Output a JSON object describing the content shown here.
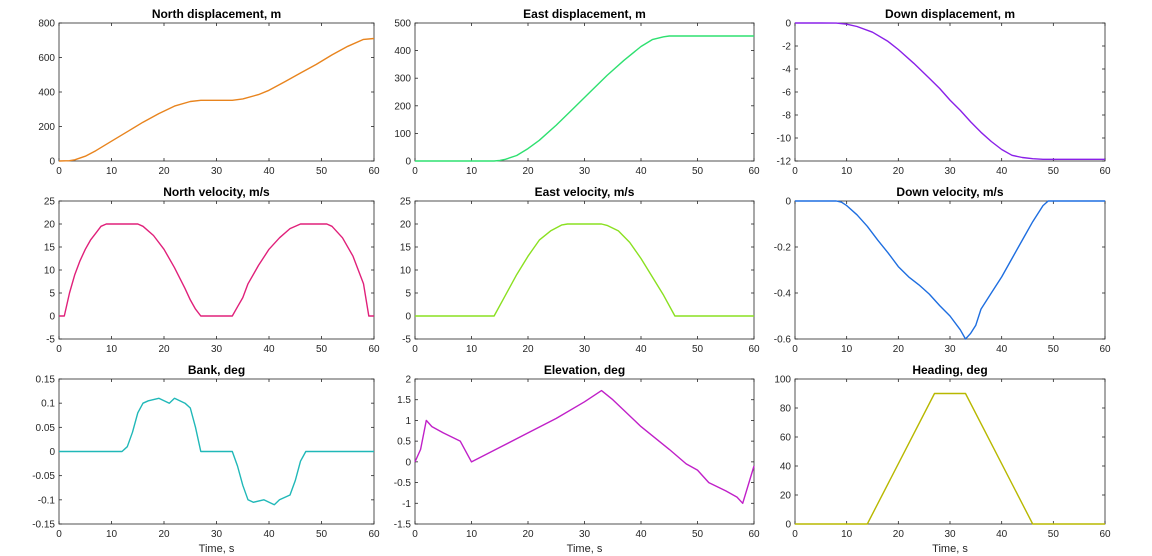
{
  "chart_data": [
    {
      "type": "line",
      "title": "North displacement, m",
      "xlabel": "",
      "ylabel": "",
      "xlim": [
        0,
        60
      ],
      "ylim": [
        0,
        800
      ],
      "xticks": [
        "0",
        "10",
        "20",
        "30",
        "40",
        "50",
        "60"
      ],
      "yticks": [
        "0",
        "200",
        "400",
        "600",
        "800"
      ],
      "series": [
        {
          "color": "#e8841e",
          "x": [
            0,
            2,
            3,
            5,
            7,
            10,
            13,
            16,
            19,
            22,
            25,
            27,
            30,
            33,
            35,
            38,
            40,
            43,
            46,
            49,
            52,
            55,
            58,
            60
          ],
          "y": [
            0,
            2,
            7,
            28,
            60,
            115,
            170,
            225,
            275,
            318,
            345,
            352,
            352,
            352,
            360,
            385,
            410,
            460,
            510,
            560,
            615,
            665,
            705,
            710
          ]
        }
      ]
    },
    {
      "type": "line",
      "title": "East displacement, m",
      "xlabel": "",
      "ylabel": "",
      "xlim": [
        0,
        60
      ],
      "ylim": [
        0,
        500
      ],
      "xticks": [
        "0",
        "10",
        "20",
        "30",
        "40",
        "50",
        "60"
      ],
      "yticks": [
        "0",
        "100",
        "200",
        "300",
        "400",
        "500"
      ],
      "series": [
        {
          "color": "#2ee070",
          "x": [
            0,
            10,
            14,
            15,
            16,
            18,
            20,
            22,
            25,
            28,
            31,
            34,
            37,
            40,
            42,
            44,
            45,
            46,
            50,
            55,
            60
          ],
          "y": [
            0,
            0,
            0,
            2,
            6,
            20,
            45,
            75,
            130,
            190,
            250,
            310,
            365,
            415,
            440,
            450,
            453,
            453,
            453,
            453,
            453
          ]
        }
      ]
    },
    {
      "type": "line",
      "title": "Down displacement, m",
      "xlabel": "",
      "ylabel": "",
      "xlim": [
        0,
        60
      ],
      "ylim": [
        -12,
        0
      ],
      "xticks": [
        "0",
        "10",
        "20",
        "30",
        "40",
        "50",
        "60"
      ],
      "yticks": [
        "0",
        "-2",
        "-4",
        "-6",
        "-8",
        "-10",
        "-12"
      ],
      "series": [
        {
          "color": "#8a20e8",
          "x": [
            0,
            5,
            8,
            10,
            12,
            15,
            18,
            20,
            23,
            26,
            28,
            30,
            32,
            34,
            36,
            38,
            40,
            42,
            44,
            46,
            48,
            50,
            55,
            60
          ],
          "y": [
            0,
            0,
            -0.01,
            -0.1,
            -0.3,
            -0.8,
            -1.6,
            -2.3,
            -3.5,
            -4.8,
            -5.7,
            -6.7,
            -7.6,
            -8.6,
            -9.5,
            -10.3,
            -11.0,
            -11.5,
            -11.7,
            -11.8,
            -11.85,
            -11.85,
            -11.85,
            -11.85
          ]
        }
      ]
    },
    {
      "type": "line",
      "title": "North velocity, m/s",
      "xlabel": "",
      "ylabel": "",
      "xlim": [
        0,
        60
      ],
      "ylim": [
        -5,
        25
      ],
      "xticks": [
        "0",
        "10",
        "20",
        "30",
        "40",
        "50",
        "60"
      ],
      "yticks": [
        "-5",
        "0",
        "5",
        "10",
        "15",
        "20",
        "25"
      ],
      "series": [
        {
          "color": "#e0207a",
          "x": [
            0,
            1,
            2,
            3,
            4,
            5,
            6,
            7,
            8,
            9,
            15,
            16,
            18,
            20,
            22,
            24,
            25,
            26,
            27,
            33,
            34,
            35,
            36,
            38,
            40,
            42,
            44,
            46,
            47,
            51,
            52,
            54,
            56,
            58,
            59,
            60
          ],
          "y": [
            0,
            0,
            5,
            9,
            12,
            14.5,
            16.5,
            18,
            19.5,
            20,
            20,
            19.5,
            17.5,
            14.5,
            10.5,
            6,
            3.5,
            1.5,
            0,
            0,
            2,
            4,
            7,
            11,
            14.5,
            17,
            19,
            20,
            20,
            20,
            19.5,
            17,
            13,
            7,
            0,
            0
          ]
        }
      ]
    },
    {
      "type": "line",
      "title": "East velocity, m/s",
      "xlabel": "",
      "ylabel": "",
      "xlim": [
        0,
        60
      ],
      "ylim": [
        -5,
        25
      ],
      "xticks": [
        "0",
        "10",
        "20",
        "30",
        "40",
        "50",
        "60"
      ],
      "yticks": [
        "-5",
        "0",
        "5",
        "10",
        "15",
        "20",
        "25"
      ],
      "series": [
        {
          "color": "#8ae020",
          "x": [
            0,
            14,
            16,
            18,
            20,
            22,
            24,
            26,
            27,
            33,
            34,
            36,
            38,
            40,
            42,
            44,
            46,
            50,
            55,
            60
          ],
          "y": [
            0,
            0,
            4.5,
            9,
            13,
            16.5,
            18.5,
            19.8,
            20,
            20,
            19.7,
            18.5,
            16,
            12.5,
            8.5,
            4.5,
            0,
            0,
            0,
            0
          ]
        }
      ]
    },
    {
      "type": "line",
      "title": "Down velocity, m/s",
      "xlabel": "",
      "ylabel": "",
      "xlim": [
        0,
        60
      ],
      "ylim": [
        -0.6,
        0
      ],
      "xticks": [
        "0",
        "10",
        "20",
        "30",
        "40",
        "50",
        "60"
      ],
      "yticks": [
        "0",
        "-0.2",
        "-0.4",
        "-0.6"
      ],
      "series": [
        {
          "color": "#1e6ee0",
          "x": [
            0,
            4,
            8,
            9,
            10,
            12,
            14,
            16,
            18,
            20,
            22,
            24,
            26,
            28,
            30,
            32,
            33,
            34,
            35,
            36,
            38,
            40,
            42,
            44,
            46,
            48,
            49,
            52,
            55,
            58,
            60
          ],
          "y": [
            0,
            0,
            0,
            -0.005,
            -0.02,
            -0.06,
            -0.11,
            -0.17,
            -0.225,
            -0.285,
            -0.33,
            -0.365,
            -0.405,
            -0.455,
            -0.5,
            -0.56,
            -0.6,
            -0.575,
            -0.54,
            -0.47,
            -0.4,
            -0.33,
            -0.25,
            -0.17,
            -0.09,
            -0.02,
            0,
            0,
            0,
            0,
            0
          ]
        }
      ]
    },
    {
      "type": "line",
      "title": "Bank, deg",
      "xlabel": "Time, s",
      "ylabel": "",
      "xlim": [
        0,
        60
      ],
      "ylim": [
        -0.15,
        0.15
      ],
      "xticks": [
        "0",
        "10",
        "20",
        "30",
        "40",
        "50",
        "60"
      ],
      "yticks": [
        "0.15",
        "0.1",
        "0.05",
        "0",
        "-0.05",
        "-0.1",
        "-0.15"
      ],
      "series": [
        {
          "color": "#20b8b8",
          "x": [
            0,
            12,
            13,
            14,
            15,
            16,
            17,
            19,
            21,
            22,
            24,
            25,
            26,
            27,
            33,
            34,
            35,
            36,
            37,
            39,
            41,
            42,
            44,
            45,
            46,
            47,
            48,
            52,
            56,
            60
          ],
          "y": [
            0,
            0,
            0.01,
            0.04,
            0.08,
            0.1,
            0.105,
            0.11,
            0.1,
            0.11,
            0.1,
            0.09,
            0.05,
            0,
            0,
            -0.03,
            -0.07,
            -0.1,
            -0.105,
            -0.1,
            -0.11,
            -0.1,
            -0.09,
            -0.06,
            -0.02,
            0,
            0,
            0,
            0,
            0
          ]
        }
      ]
    },
    {
      "type": "line",
      "title": "Elevation, deg",
      "xlabel": "Time, s",
      "ylabel": "",
      "xlim": [
        0,
        60
      ],
      "ylim": [
        -1.5,
        2
      ],
      "xticks": [
        "0",
        "10",
        "20",
        "30",
        "40",
        "50",
        "60"
      ],
      "yticks": [
        "2",
        "1.5",
        "1",
        "0.5",
        "0",
        "-0.5",
        "-1",
        "-1.5"
      ],
      "series": [
        {
          "color": "#c020c8",
          "x": [
            0,
            1,
            2,
            3,
            5,
            8,
            10,
            15,
            20,
            25,
            30,
            33,
            35,
            40,
            45,
            48,
            50,
            52,
            55,
            57,
            58,
            60
          ],
          "y": [
            0,
            0.3,
            1,
            0.85,
            0.7,
            0.5,
            0,
            0.35,
            0.7,
            1.05,
            1.45,
            1.72,
            1.5,
            0.85,
            0.3,
            -0.05,
            -0.2,
            -0.5,
            -0.7,
            -0.85,
            -1,
            -0.1
          ]
        }
      ]
    },
    {
      "type": "line",
      "title": "Heading, deg",
      "xlabel": "Time, s",
      "ylabel": "",
      "xlim": [
        0,
        60
      ],
      "ylim": [
        0,
        100
      ],
      "xticks": [
        "0",
        "10",
        "20",
        "30",
        "40",
        "50",
        "60"
      ],
      "yticks": [
        "0",
        "20",
        "40",
        "60",
        "80",
        "100"
      ],
      "series": [
        {
          "color": "#b8b800",
          "x": [
            0,
            14,
            27,
            33,
            46,
            60
          ],
          "y": [
            0,
            0,
            90,
            90,
            0,
            0
          ]
        }
      ]
    }
  ]
}
